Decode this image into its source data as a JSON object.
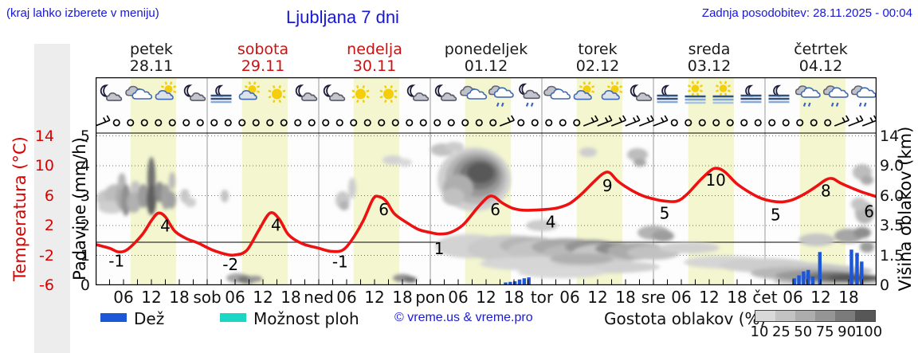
{
  "header": {
    "note_left": "(kraj lahko izberete v meniju)",
    "title": "Ljubljana 7 dni",
    "updated": "Zadnja posodobitev: 28.11.2025 - 00:04"
  },
  "days": [
    {
      "name": "petek",
      "date": "28.11",
      "red": false
    },
    {
      "name": "sobota",
      "date": "29.11",
      "red": true
    },
    {
      "name": "nedelja",
      "date": "30.11",
      "red": true
    },
    {
      "name": "ponedeljek",
      "date": "01.12",
      "red": false
    },
    {
      "name": "torek",
      "date": "02.12",
      "red": false
    },
    {
      "name": "sreda",
      "date": "03.12",
      "red": false
    },
    {
      "name": "četrtek",
      "date": "04.12",
      "red": false
    }
  ],
  "axes": {
    "temp_label": "Temperatura (°C)",
    "temp_ticks": [
      "14",
      "10",
      "6",
      "2",
      "-2",
      "-6"
    ],
    "precip_label": "Padavine (mm/h)",
    "precip_ticks": [
      "5",
      "4",
      "3",
      "2",
      "1",
      "0"
    ],
    "cloud_label": "Višina oblakov (km)",
    "cloud_ticks": [
      "14",
      "9.0",
      "6.0",
      "3.5",
      "1.5",
      "0"
    ],
    "hour_labels": [
      "06",
      "12",
      "18"
    ],
    "day_abbrevs": [
      "sob",
      "ned",
      "pon",
      "tor",
      "sre",
      "čet"
    ]
  },
  "legend": {
    "rain": "Dež",
    "showers": "Možnost ploh",
    "copyright": "© vreme.us & vreme.pro",
    "cloud_density": "Gostota oblakov (%)",
    "density_ticks": [
      "10",
      "25",
      "50",
      "75",
      "90",
      "100"
    ],
    "density_colors": [
      "#d9d9d9",
      "#c3c3c3",
      "#adadad",
      "#959595",
      "#7b7b7b",
      "#575757"
    ]
  },
  "colors": {
    "link_blue": "#1717d8",
    "axis_red": "#dd0000",
    "curve_red": "#ee1111",
    "weekend_red": "#cc1111",
    "daylight_band": "#f3f6cf",
    "rain_blue": "#1c57d8",
    "shower_cyan": "#19d7c4",
    "grid_gray": "#999999"
  },
  "chart_data": {
    "type": "line",
    "x_unit": "hours since 28.11. 00:00 (7 days, 24h/day)",
    "ylim_temp": [
      -6,
      14
    ],
    "ylim_precip": [
      0,
      5
    ],
    "cloud_height_ticks_km": [
      0,
      1.5,
      3.5,
      6.0,
      9.0,
      14
    ],
    "daylight_band_hours": [
      7.5,
      17.3
    ],
    "temperature_series": {
      "name": "Temperatura (°C)",
      "points": [
        [
          0,
          -0.3
        ],
        [
          3,
          -0.8
        ],
        [
          5,
          -1.3
        ],
        [
          7,
          -0.9
        ],
        [
          10,
          1.0
        ],
        [
          12,
          2.9
        ],
        [
          13.5,
          3.9
        ],
        [
          15,
          3.4
        ],
        [
          17,
          1.5
        ],
        [
          19.5,
          0.5
        ],
        [
          22,
          -0.1
        ],
        [
          25,
          -1.0
        ],
        [
          28,
          -1.6
        ],
        [
          30,
          -1.7
        ],
        [
          32.5,
          -1.1
        ],
        [
          35,
          1.5
        ],
        [
          37.5,
          3.9
        ],
        [
          39.5,
          3.1
        ],
        [
          41.5,
          1.0
        ],
        [
          44.5,
          -0.2
        ],
        [
          48,
          -0.8
        ],
        [
          50.5,
          -1.2
        ],
        [
          53,
          -1.1
        ],
        [
          55,
          0.2
        ],
        [
          57.5,
          2.8
        ],
        [
          59.7,
          5.8
        ],
        [
          61,
          6.1
        ],
        [
          62.5,
          5.5
        ],
        [
          64.3,
          3.8
        ],
        [
          67,
          2.6
        ],
        [
          69.5,
          1.7
        ],
        [
          72,
          1.3
        ],
        [
          74,
          1.1
        ],
        [
          76.3,
          1.3
        ],
        [
          79,
          2.3
        ],
        [
          82,
          4.5
        ],
        [
          84.3,
          6.0
        ],
        [
          85.7,
          6.1
        ],
        [
          87.4,
          5.3
        ],
        [
          89.5,
          4.6
        ],
        [
          91.7,
          4.3
        ],
        [
          94.3,
          4.3
        ],
        [
          96.9,
          4.4
        ],
        [
          99.4,
          4.6
        ],
        [
          102,
          5.2
        ],
        [
          104.6,
          6.5
        ],
        [
          107.2,
          8.1
        ],
        [
          109.2,
          9.2
        ],
        [
          110.6,
          9.3
        ],
        [
          112.3,
          8.2
        ],
        [
          114.9,
          7.1
        ],
        [
          117.4,
          6.3
        ],
        [
          120,
          5.8
        ],
        [
          122.6,
          5.5
        ],
        [
          125.1,
          5.5
        ],
        [
          127.2,
          6.4
        ],
        [
          129.9,
          8.2
        ],
        [
          132.3,
          9.6
        ],
        [
          133.7,
          9.9
        ],
        [
          135.4,
          9.4
        ],
        [
          138,
          7.8
        ],
        [
          140.6,
          6.7
        ],
        [
          143.1,
          5.9
        ],
        [
          145.4,
          5.5
        ],
        [
          147.7,
          5.4
        ],
        [
          150,
          5.7
        ],
        [
          152.6,
          6.5
        ],
        [
          155.1,
          7.5
        ],
        [
          157.2,
          8.4
        ],
        [
          158.6,
          8.5
        ],
        [
          160.3,
          7.9
        ],
        [
          162.9,
          7.2
        ],
        [
          165.4,
          6.6
        ],
        [
          168,
          6.1
        ]
      ]
    },
    "temperature_point_labels": [
      {
        "h": 4.5,
        "t": -2.5,
        "text": "-1"
      },
      {
        "h": 15.0,
        "t": 2.2,
        "text": "4"
      },
      {
        "h": 29.0,
        "t": -3.0,
        "text": "-2"
      },
      {
        "h": 38.8,
        "t": 2.3,
        "text": "4"
      },
      {
        "h": 52.6,
        "t": -2.6,
        "text": "-1"
      },
      {
        "h": 62.0,
        "t": 4.4,
        "text": "6"
      },
      {
        "h": 73.9,
        "t": -0.85,
        "text": "1"
      },
      {
        "h": 86.0,
        "t": 4.4,
        "text": "6"
      },
      {
        "h": 97.9,
        "t": 2.7,
        "text": "4"
      },
      {
        "h": 110.1,
        "t": 7.6,
        "text": "9"
      },
      {
        "h": 122.4,
        "t": 3.9,
        "text": "5"
      },
      {
        "h": 133.4,
        "t": 8.3,
        "text": "10"
      },
      {
        "h": 146.3,
        "t": 3.7,
        "text": "5"
      },
      {
        "h": 157.1,
        "t": 6.9,
        "text": "8"
      },
      {
        "h": 166.4,
        "t": 4.1,
        "text": "6"
      }
    ],
    "precipitation_bars": {
      "name": "Dež",
      "unit": "mm/h",
      "points": [
        [
          88.2,
          0.08
        ],
        [
          89.2,
          0.1
        ],
        [
          90.2,
          0.12
        ],
        [
          91.2,
          0.18
        ],
        [
          92.2,
          0.22
        ],
        [
          93.2,
          0.25
        ],
        [
          150.3,
          0.22
        ],
        [
          151.3,
          0.32
        ],
        [
          152.3,
          0.45
        ],
        [
          153.3,
          0.5
        ],
        [
          154.3,
          0.28
        ],
        [
          155.8,
          1.1
        ],
        [
          162.6,
          1.18
        ],
        [
          163.8,
          1.07
        ],
        [
          164.8,
          0.78
        ]
      ]
    },
    "weather_icons": [
      "moon-cloud",
      "cloud",
      "sun-cloud",
      "moon-cloud",
      "moon-fog",
      "sun-cloud",
      "sun",
      "moon-cloud",
      "moon-cloud",
      "sun",
      "sun",
      "moon-cloud",
      "moon-cloud",
      "cloud",
      "cloud-drizzle",
      "moon-cloud-drizzle",
      "cloud",
      "sun-cloud",
      "sun-cloud",
      "moon-cloud",
      "moon-fog",
      "sun-fog",
      "sun-fog",
      "moon-fog",
      "moon-fog",
      "cloud-drizzle",
      "cloud-drizzle",
      "cloud-drizzle"
    ],
    "wind_markers": {
      "slots": 56,
      "calm_symbol": "circle",
      "barb_slots": [
        0,
        29,
        35,
        36,
        37,
        38,
        39,
        40,
        53,
        54,
        55
      ]
    },
    "cloud_blobs": [
      [
        14,
        152,
        13,
        11,
        "#c8c8c8"
      ],
      [
        26,
        147,
        15,
        13,
        "#bdbdbd"
      ],
      [
        20,
        163,
        17,
        8,
        "#cfcfcf"
      ],
      [
        34,
        150,
        9,
        16,
        "#aaaaaa"
      ],
      [
        33,
        131,
        5,
        11,
        "#b6b6b6"
      ],
      [
        38,
        154,
        6,
        20,
        "#909090"
      ],
      [
        50,
        139,
        6,
        9,
        "#c3c3c3"
      ],
      [
        48,
        157,
        9,
        13,
        "#b1b1b1"
      ],
      [
        60,
        149,
        7,
        15,
        "#9b9b9b"
      ],
      [
        70,
        127,
        5,
        27,
        "#707070"
      ],
      [
        70,
        154,
        6,
        19,
        "#5e5e5e"
      ],
      [
        80,
        144,
        6,
        13,
        "#8b8b8b"
      ],
      [
        88,
        150,
        6,
        16,
        "#a3a3a3"
      ],
      [
        96,
        130,
        4,
        11,
        "#b9b9b9"
      ],
      [
        95,
        154,
        6,
        11,
        "#a0a0a0"
      ],
      [
        112,
        149,
        6,
        9,
        "#c7c7c7"
      ],
      [
        119,
        157,
        7,
        6,
        "#cdcdcd"
      ],
      [
        162,
        149,
        5,
        8,
        "#c3c3c3"
      ],
      [
        178,
        252,
        14,
        6,
        "#a5a5a5"
      ],
      [
        190,
        254,
        12,
        5,
        "#777777"
      ],
      [
        200,
        253,
        9,
        4,
        "#999999"
      ],
      [
        310,
        154,
        9,
        11,
        "#c8c8c8"
      ],
      [
        312,
        161,
        6,
        6,
        "#b3b3b3"
      ],
      [
        322,
        139,
        5,
        13,
        "#cecece"
      ],
      [
        373,
        104,
        13,
        6,
        "#d3d3d3"
      ],
      [
        388,
        107,
        9,
        5,
        "#d9d9d9"
      ],
      [
        385,
        252,
        12,
        5,
        "#909090"
      ],
      [
        395,
        254,
        8,
        4,
        "#717171"
      ],
      [
        435,
        91,
        15,
        8,
        "#c1c1c1"
      ],
      [
        450,
        87,
        12,
        6,
        "#cccccc"
      ],
      [
        475,
        128,
        46,
        40,
        "#d0d0d0"
      ],
      [
        477,
        126,
        38,
        33,
        "#b5b5b5"
      ],
      [
        479,
        124,
        31,
        26,
        "#979797"
      ],
      [
        481,
        122,
        24,
        19,
        "#767676"
      ],
      [
        483,
        120,
        17,
        13,
        "#595959"
      ],
      [
        455,
        139,
        19,
        17,
        "#aeaeae"
      ],
      [
        449,
        150,
        14,
        11,
        "#c1c1c1"
      ],
      [
        470,
        212,
        44,
        15,
        "#d3d3d3"
      ],
      [
        520,
        215,
        54,
        17,
        "#cacaca"
      ],
      [
        545,
        211,
        38,
        11,
        "#b6b6b6"
      ],
      [
        575,
        218,
        58,
        15,
        "#c4c4c4"
      ],
      [
        590,
        213,
        43,
        11,
        "#a9a9a9"
      ],
      [
        610,
        220,
        48,
        11,
        "#b9b9b9"
      ],
      [
        622,
        213,
        33,
        9,
        "#949494"
      ],
      [
        640,
        222,
        43,
        13,
        "#c6c6c6"
      ],
      [
        655,
        215,
        28,
        8,
        "#8c8c8c"
      ],
      [
        680,
        218,
        38,
        11,
        "#ababab"
      ],
      [
        700,
        220,
        33,
        9,
        "#c1c1c1"
      ],
      [
        560,
        234,
        78,
        9,
        "#d6d6d6"
      ],
      [
        640,
        238,
        68,
        8,
        "#d0d0d0"
      ],
      [
        610,
        228,
        40,
        7,
        "#b0b0b0"
      ],
      [
        585,
        245,
        55,
        7,
        "#d8d8d8"
      ],
      [
        560,
        186,
        20,
        7,
        "#cbcbcb"
      ],
      [
        618,
        94,
        11,
        6,
        "#cecece"
      ],
      [
        680,
        97,
        13,
        8,
        "#bdbdbd"
      ],
      [
        683,
        107,
        8,
        5,
        "#a7a7a7"
      ],
      [
        700,
        195,
        20,
        9,
        "#b3b3b3"
      ],
      [
        712,
        199,
        14,
        7,
        "#9d9d9d"
      ],
      [
        745,
        214,
        38,
        7,
        "#d0d0d0"
      ],
      [
        790,
        232,
        52,
        8,
        "#d5d5d5"
      ],
      [
        840,
        236,
        58,
        9,
        "#cecece"
      ],
      [
        880,
        240,
        60,
        8,
        "#cdcdcd"
      ],
      [
        920,
        243,
        55,
        7,
        "#c2c2c2"
      ],
      [
        920,
        256,
        70,
        5,
        "#bfbfbf"
      ],
      [
        870,
        246,
        48,
        8,
        "#b7b7b7"
      ],
      [
        905,
        249,
        52,
        7,
        "#989898"
      ],
      [
        930,
        251,
        42,
        6,
        "#707070"
      ],
      [
        952,
        252,
        33,
        5,
        "#565656"
      ],
      [
        905,
        204,
        23,
        8,
        "#c5c5c5"
      ],
      [
        945,
        199,
        18,
        9,
        "#a6a6a6"
      ],
      [
        962,
        195,
        11,
        7,
        "#8e8e8e"
      ],
      [
        968,
        213,
        9,
        7,
        "#9c9c9c"
      ],
      [
        965,
        170,
        12,
        14,
        "#b4b4b4"
      ],
      [
        962,
        119,
        12,
        10,
        "#bdbdbd"
      ],
      [
        968,
        129,
        8,
        6,
        "#aaaaaa"
      ],
      [
        958,
        159,
        10,
        8,
        "#c4c4c4"
      ]
    ]
  }
}
